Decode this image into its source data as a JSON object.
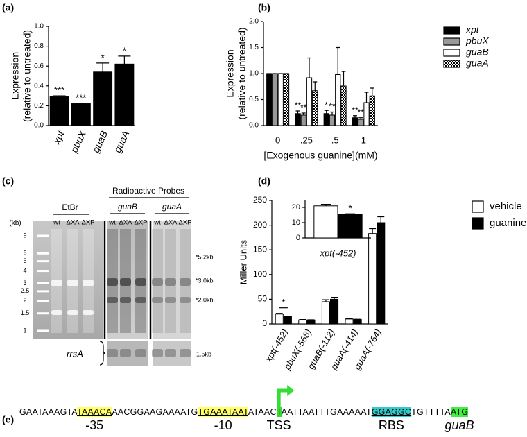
{
  "panel_labels": [
    "(a)",
    "(b)",
    "(c)",
    "(d)",
    "(e)"
  ],
  "chart_data": [
    {
      "type": "bar",
      "y_label": [
        "Expression",
        "(relative to untreated)"
      ],
      "categories": [
        "xpt",
        "pbuX",
        "guaB",
        "guaA"
      ],
      "values": [
        0.29,
        0.22,
        0.54,
        0.62
      ],
      "errors": [
        0.01,
        0.005,
        0.09,
        0.08
      ],
      "annotations": [
        "***",
        "***",
        "*",
        "*"
      ],
      "color": "#000000",
      "edgecolor": "#000000",
      "ylim": [
        0,
        1
      ],
      "yticks": [
        {
          "value": 0,
          "label": "0.0"
        },
        0.2,
        0.4,
        0.6,
        0.8,
        {
          "value": 1,
          "label": "1.0"
        }
      ]
    },
    {
      "type": "bar",
      "y_label": [
        "Expression",
        "(relative to untreated)"
      ],
      "x_label": "[Exogenous guanine](mM)",
      "categories": [
        "0",
        ".25",
        ".5",
        "1"
      ],
      "series": [
        {
          "name": "xpt",
          "color": "#000000",
          "values": [
            1,
            0.23,
            0.23,
            0.15
          ],
          "errors": [
            0,
            0.05,
            0.06,
            0.04
          ],
          "annotations": [
            null,
            "**",
            "*",
            "**"
          ]
        },
        {
          "name": "pbuX",
          "color": "#999999",
          "values": [
            1,
            0.2,
            0.2,
            0.12
          ],
          "errors": [
            0,
            0.04,
            0.06,
            0.03
          ],
          "annotations": [
            null,
            "**",
            "**",
            "**"
          ]
        },
        {
          "name": "guaB",
          "color": "#ffffff",
          "values": [
            1,
            0.92,
            0.98,
            0.44
          ],
          "errors": [
            0,
            0.38,
            0.52,
            0.2
          ]
        },
        {
          "name": "guaA",
          "pattern": "checker",
          "values": [
            1,
            0.67,
            0.76,
            0.57
          ],
          "errors": [
            0,
            0.17,
            0.28,
            0.15
          ]
        }
      ],
      "edgecolor": "#000000",
      "legend": "right",
      "ylim": [
        0,
        2
      ],
      "yticks": [
        {
          "value": 0,
          "label": "0.0"
        },
        0.5,
        {
          "value": 1,
          "label": "1.0"
        },
        1.5,
        {
          "value": 2,
          "label": "2.0"
        }
      ]
    },
    {
      "type": "bar",
      "y_label": "Miller Units",
      "categories": [
        "xpt(-452)",
        "pbuX(-568)",
        "guaB(-112)",
        "guaA(-414)",
        "guaA(-764)"
      ],
      "series": [
        {
          "name": "vehicle",
          "color": "#ffffff",
          "values": [
            20,
            8,
            45,
            10,
            183
          ],
          "errors": [
            1.5,
            1,
            4,
            1,
            10
          ]
        },
        {
          "name": "guanine",
          "color": "#000000",
          "values": [
            15,
            8,
            50,
            9,
            205
          ],
          "errors": [
            1,
            0.5,
            4,
            0.5,
            12
          ]
        }
      ],
      "significance": [
        "*",
        null,
        null,
        null,
        null
      ],
      "edgecolor": "#000000",
      "legend": "right",
      "ylim": [
        0,
        250
      ],
      "yticks": [
        0,
        50,
        100,
        150,
        200,
        250
      ]
    },
    {
      "type": "bar",
      "categories": [
        "xpt(-452)"
      ],
      "series": [
        {
          "color": "#ffffff",
          "values": [
            21
          ],
          "errors": [
            1
          ]
        },
        {
          "color": "#000000",
          "values": [
            15.5
          ],
          "errors": [
            0.3
          ],
          "annotations": [
            "*"
          ]
        }
      ],
      "edgecolor": "#000000",
      "ylim": [
        0,
        25
      ],
      "yticks": [
        0,
        10,
        20
      ]
    }
  ],
  "gel": {
    "header": "Radioactive Probes",
    "groups": [
      {
        "title": "EtBr",
        "lanes": [
          "wt",
          "ΔXA",
          "ΔXP"
        ]
      },
      {
        "title": "guaB",
        "italic": true,
        "lanes": [
          "wt",
          "ΔXA",
          "ΔXP"
        ]
      },
      {
        "title": "guaA",
        "italic": true,
        "lanes": [
          "wt",
          "ΔXA",
          "ΔXP"
        ]
      }
    ],
    "size_unit": "(kb)",
    "ladder": [
      9,
      6,
      5,
      4,
      3,
      2.5,
      2,
      1.5,
      1
    ],
    "band_labels": [
      "*5.2kb",
      "*3.0kb",
      "*2.0kb"
    ],
    "loading_control": "rrsA",
    "loading_control_size": "1.5kb"
  },
  "sequence": {
    "segments": [
      {
        "text": "GAATAAAGTA"
      },
      {
        "text": "TAAACA",
        "highlight": "#ffff66",
        "underline": true,
        "label": "-35"
      },
      {
        "text": "AACGGAAGAAAATG"
      },
      {
        "text": "TGAAATAAT",
        "highlight": "#ffff66",
        "underline": true,
        "label": "-10"
      },
      {
        "text": "ATAAC"
      },
      {
        "text": "T",
        "highlight": "#33dd33",
        "arrow": true,
        "label": "TSS"
      },
      {
        "text": "AATTAATTTGAAAAAT"
      },
      {
        "text": "GGAGGC",
        "highlight": "#33cccc",
        "underline": true,
        "label": "RBS"
      },
      {
        "text": "TGTTTTA"
      },
      {
        "text": "ATG",
        "highlight": "#44ee44",
        "label": "guaB",
        "label_style": "italic"
      }
    ]
  }
}
